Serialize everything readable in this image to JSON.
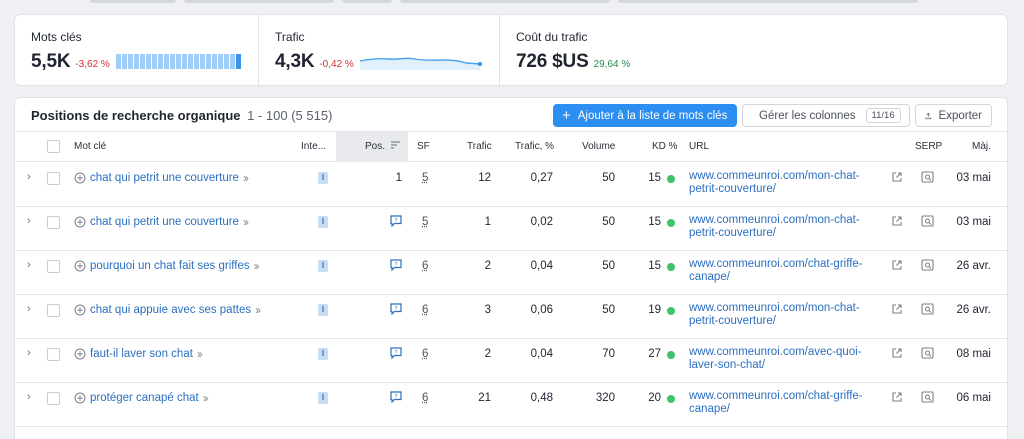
{
  "metrics": {
    "keywords": {
      "label": "Mots clés",
      "value": "5,5K",
      "delta": "-3,62 %"
    },
    "traffic": {
      "label": "Trafic",
      "value": "4,3K",
      "delta": "-0,42 %"
    },
    "cost": {
      "label": "Coût du trafic",
      "value": "726 $US",
      "delta": "29,64 %"
    }
  },
  "table": {
    "title": "Positions de recherche organique",
    "range": "1 - 100 (5 515)",
    "add_button": "Ajouter à la liste de mots clés",
    "columns_button": "Gérer les colonnes",
    "columns_badge": "11/16",
    "export_button": "Exporter",
    "headers": {
      "keyword": "Mot clé",
      "intent": "Inte...",
      "pos": "Pos.",
      "sf": "SF",
      "traffic": "Trafic",
      "traffic_pct": "Trafic, %",
      "volume": "Volume",
      "kd": "KD %",
      "url": "URL",
      "serp": "SERP",
      "updated": "Màj."
    },
    "rows": [
      {
        "keyword": "chat qui petrit une couverture",
        "intent": "I",
        "pos": "1",
        "sf": "5",
        "traffic": "12",
        "traffic_pct": "0,27",
        "volume": "50",
        "kd": "15",
        "url1": "www.commeunroi.com/mon-chat-",
        "url2": "petrit-couverture/",
        "date": "03 mai"
      },
      {
        "keyword": "chat qui petrit une couverture",
        "intent": "I",
        "pos": "",
        "sf": "5",
        "traffic": "1",
        "traffic_pct": "0,02",
        "volume": "50",
        "kd": "15",
        "url1": "www.commeunroi.com/mon-chat-",
        "url2": "petrit-couverture/",
        "date": "03 mai"
      },
      {
        "keyword": "pourquoi un chat fait ses griffes",
        "intent": "I",
        "pos": "",
        "sf": "6",
        "traffic": "2",
        "traffic_pct": "0,04",
        "volume": "50",
        "kd": "15",
        "url1": "www.commeunroi.com/chat-griffe-",
        "url2": "canape/",
        "date": "26 avr."
      },
      {
        "keyword": "chat qui appuie avec ses pattes",
        "intent": "I",
        "pos": "",
        "sf": "6",
        "traffic": "3",
        "traffic_pct": "0,06",
        "volume": "50",
        "kd": "19",
        "url1": "www.commeunroi.com/mon-chat-",
        "url2": "petrit-couverture/",
        "date": "26 avr."
      },
      {
        "keyword": "faut-il laver son chat",
        "intent": "I",
        "pos": "",
        "sf": "6",
        "traffic": "2",
        "traffic_pct": "0,04",
        "volume": "70",
        "kd": "27",
        "url1": "www.commeunroi.com/avec-quoi-",
        "url2": "laver-son-chat/",
        "date": "08 mai"
      },
      {
        "keyword": "protéger canapé chat",
        "intent": "I",
        "pos": "",
        "sf": "6",
        "traffic": "21",
        "traffic_pct": "0,48",
        "volume": "320",
        "kd": "20",
        "url1": "www.commeunroi.com/chat-griffe-",
        "url2": "canape/",
        "date": "06 mai"
      }
    ]
  },
  "colors": {
    "accent": "#2b8ef0",
    "link": "#2b6fc0",
    "negative": "#d0342c",
    "positive": "#2a8a52",
    "kd_dot": "#3ec26a"
  }
}
